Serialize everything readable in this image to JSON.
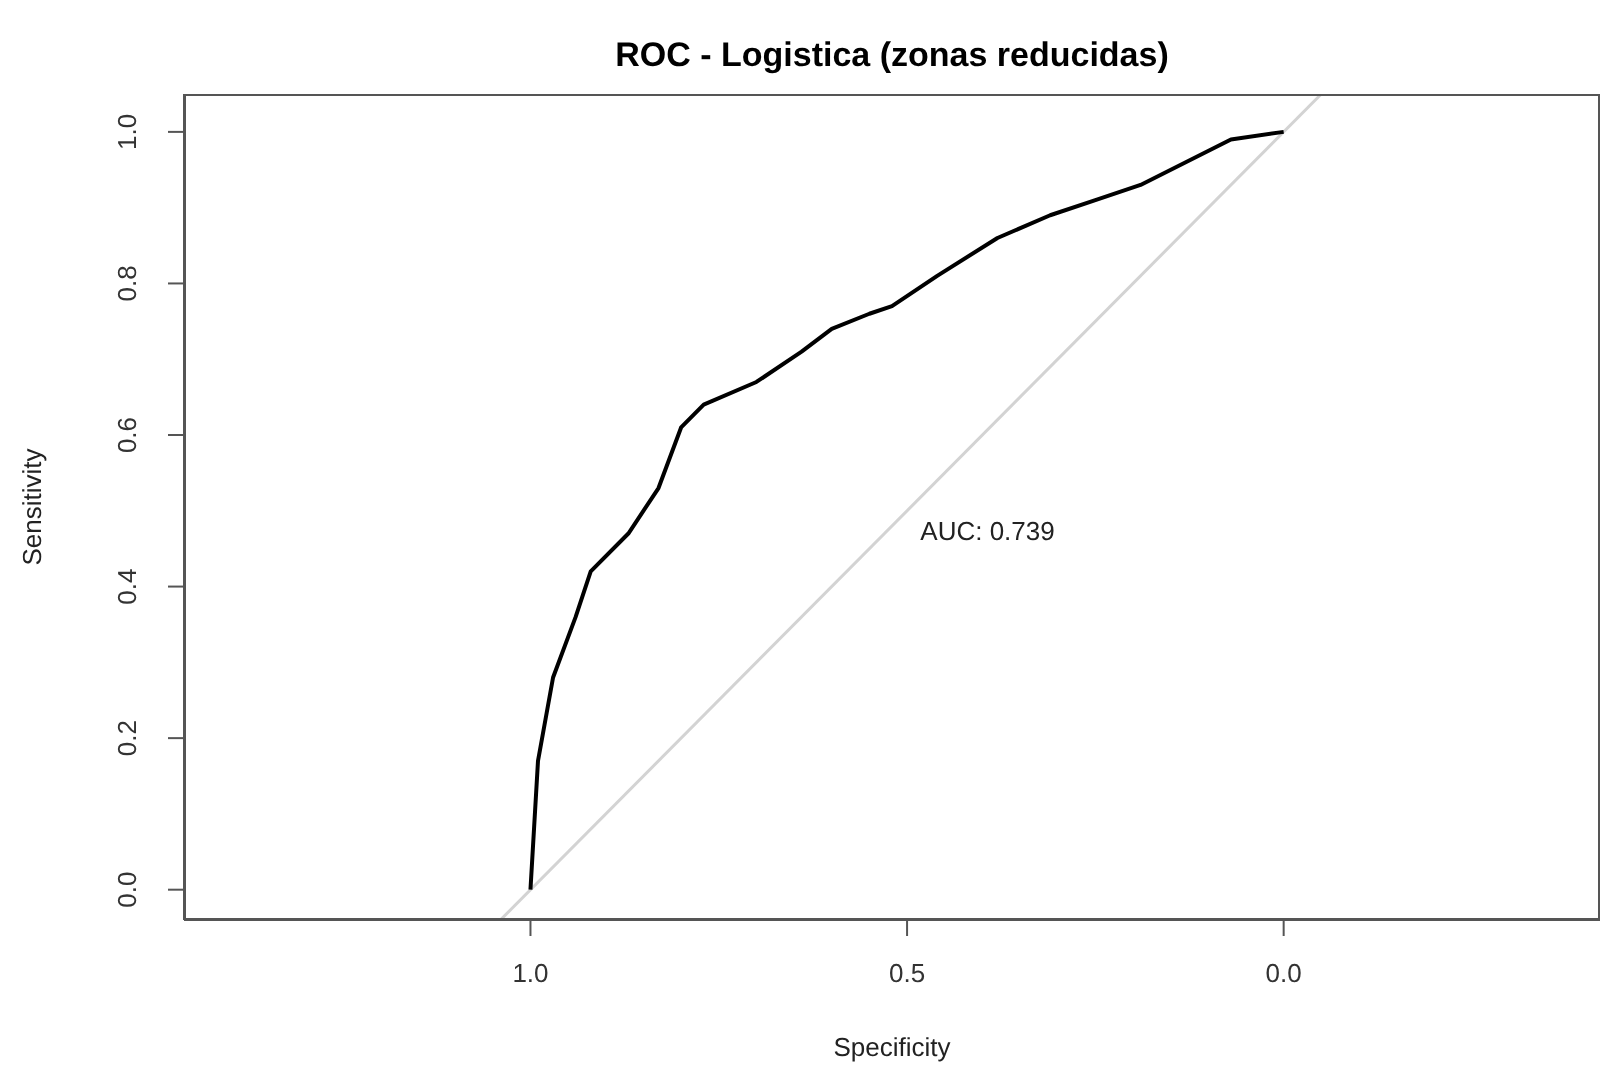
{
  "chart_data": {
    "type": "line",
    "title": "ROC - Logistica (zonas reducidas)",
    "xlabel": "Specificity",
    "ylabel": "Sensitivity",
    "xlim": [
      1.46,
      -0.42
    ],
    "ylim": [
      -0.04,
      1.05
    ],
    "xticks": [
      {
        "value": 1,
        "label": "1.0"
      },
      {
        "value": 0.5,
        "label": "0.5"
      },
      {
        "value": 0,
        "label": "0.0"
      }
    ],
    "yticks": [
      {
        "value": 0,
        "label": "0.0"
      },
      {
        "value": 0.2,
        "label": "0.2"
      },
      {
        "value": 0.4,
        "label": "0.4"
      },
      {
        "value": 0.6,
        "label": "0.6"
      },
      {
        "value": 0.8,
        "label": "0.8"
      },
      {
        "value": 1,
        "label": "1.0"
      }
    ],
    "grid": false,
    "marker": "none",
    "line_style": "solid",
    "annotations": [
      "AUC: 0.739"
    ],
    "series": [
      {
        "color": "#d3d3d3",
        "x": [
          1.04,
          -0.05
        ],
        "values": [
          -0.04,
          1.05
        ]
      },
      {
        "color": "#000000",
        "x": [
          1.0,
          0.99,
          0.97,
          0.94,
          0.92,
          0.87,
          0.83,
          0.8,
          0.77,
          0.7,
          0.64,
          0.6,
          0.55,
          0.52,
          0.46,
          0.38,
          0.31,
          0.25,
          0.19,
          0.13,
          0.07,
          0.0
        ],
        "values": [
          0.0,
          0.17,
          0.28,
          0.36,
          0.42,
          0.47,
          0.53,
          0.61,
          0.64,
          0.67,
          0.71,
          0.74,
          0.76,
          0.77,
          0.81,
          0.86,
          0.89,
          0.91,
          0.93,
          0.96,
          0.99,
          1.0
        ]
      }
    ]
  }
}
